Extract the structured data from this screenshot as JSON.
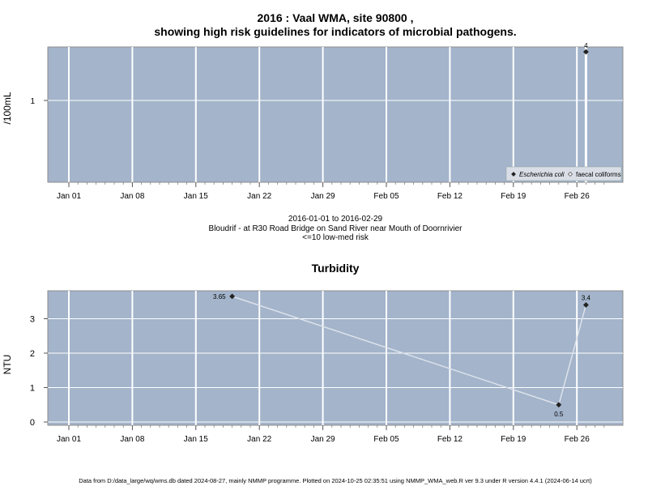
{
  "chart_data": [
    {
      "type": "scatter",
      "title": "2016 : Vaal WMA, site 90800 ,",
      "subtitle": "showing high risk guidelines for indicators of microbial pathogens.",
      "xlabel": "",
      "ylabel": "/100mL",
      "x_ticks": [
        "Jan 01",
        "Jan 08",
        "Jan 15",
        "Jan 22",
        "Jan 29",
        "Feb 05",
        "Feb 12",
        "Feb 19",
        "Feb 26"
      ],
      "y_ticks": [
        "1"
      ],
      "y_scale": "log",
      "grid": true,
      "legend_position": "bottom-right",
      "series": [
        {
          "name": "Escherichia coli",
          "color": "#222222",
          "marker": "diamond",
          "points": [
            {
              "x": "2016-02-27",
              "y": 4,
              "label": "4"
            }
          ]
        },
        {
          "name": "faecal coliforms",
          "color": "#ffffff",
          "marker": "diamond",
          "points": []
        }
      ],
      "background": "#a3b4cb",
      "gridline_color": "#ffffff",
      "highlight_line": {
        "x": "2016-02-27",
        "color": "#ffffff"
      },
      "caption_lines": [
        "2016-01-01 to 2016-02-29",
        "Bloudrif - at R30 Road Bridge on Sand River near Mouth of Doornrivier",
        "<=10 low-med risk"
      ]
    },
    {
      "type": "line",
      "title": "Turbidity",
      "xlabel": "",
      "ylabel": "NTU",
      "x_ticks": [
        "Jan 01",
        "Jan 08",
        "Jan 15",
        "Jan 22",
        "Jan 29",
        "Feb 05",
        "Feb 12",
        "Feb 19",
        "Feb 26"
      ],
      "y_ticks": [
        "0",
        "1",
        "2",
        "3"
      ],
      "ylim": [
        0,
        3.8
      ],
      "grid": true,
      "series": [
        {
          "color": "#dde2ea",
          "marker": "diamond",
          "points": [
            {
              "x": "2016-01-19",
              "y": 3.65,
              "label": "3.65"
            },
            {
              "x": "2016-02-24",
              "y": 0.5,
              "label": "0.5"
            },
            {
              "x": "2016-02-27",
              "y": 3.4,
              "label": "3.4"
            }
          ]
        }
      ],
      "background": "#a3b4cb",
      "gridline_color": "#ffffff"
    }
  ],
  "footer": "Data from D:/data_large/wq/wms.db dated 2024-08-27, mainly NMMP programme. Plotted on 2024-10-25 02:35:51 using NMMP_WMA_web.R ver 9.3 under R version 4.4.1 (2024-06-14 ucrt)"
}
